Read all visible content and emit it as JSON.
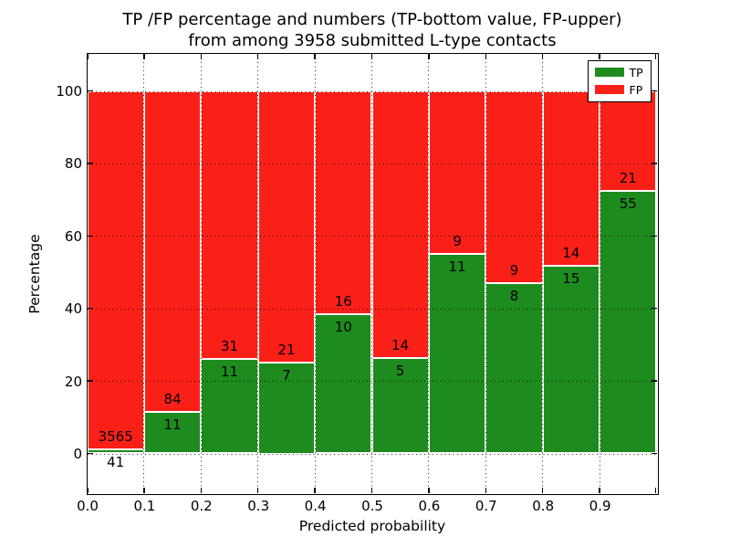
{
  "title": {
    "line1": "TP /FP percentage and numbers (TP-bottom value, FP-upper)",
    "line2": "from among 3958 submitted L-type contacts"
  },
  "chart_data": {
    "type": "bar",
    "stacked": true,
    "orientation": "vertical",
    "xlabel": "Predicted probability",
    "ylabel": "Percentage",
    "xlim": [
      0.0,
      1.0
    ],
    "ylim": [
      -10.8,
      110.4
    ],
    "bin_width": 0.1,
    "bin_starts": [
      0.0,
      0.1,
      0.2,
      0.3,
      0.4,
      0.5,
      0.6,
      0.7,
      0.8,
      0.9
    ],
    "xtick_labels": [
      "0.0",
      "0.1",
      "0.2",
      "0.3",
      "0.4",
      "0.5",
      "0.6",
      "0.7",
      "0.8",
      "0.9"
    ],
    "ytick_values": [
      0,
      20,
      40,
      60,
      80,
      100
    ],
    "grid": "dotted, drawn above bars",
    "bar_edge_color": "#ffffff",
    "series": [
      {
        "name": "TP",
        "color": "#1e8b1e",
        "counts": [
          41,
          11,
          11,
          7,
          10,
          5,
          11,
          8,
          15,
          55
        ]
      },
      {
        "name": "FP",
        "color": "#fa2018",
        "counts": [
          3565,
          84,
          31,
          21,
          16,
          14,
          9,
          9,
          14,
          21
        ]
      }
    ],
    "tp_percent_of_bin": [
      1.1,
      11.6,
      26.2,
      25.0,
      38.5,
      26.3,
      55.0,
      47.1,
      51.7,
      72.4
    ],
    "annotation_rule": "FP count above TP/FP boundary, TP count below",
    "legend": {
      "position": "upper right",
      "entries": [
        {
          "label": "TP",
          "color": "#1e8b1e"
        },
        {
          "label": "FP",
          "color": "#fa2018"
        }
      ]
    }
  }
}
